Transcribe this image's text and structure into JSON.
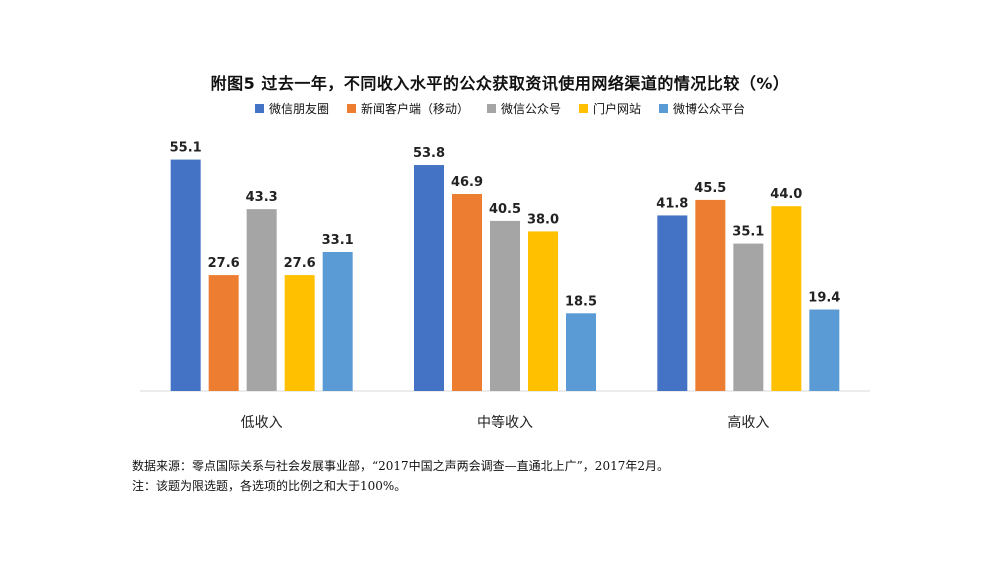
{
  "title": "附图5 过去一年，不同收入水平的公众获取资讯使用网络渠道的情况比较（%）",
  "colors": {
    "series": [
      "#4472C4",
      "#ED7D31",
      "#A5A5A5",
      "#FFC000",
      "#5B9BD5"
    ],
    "axis": "#D9D9D9"
  },
  "chart_data": {
    "type": "bar",
    "title": "附图5 过去一年，不同收入水平的公众获取资讯使用网络渠道的情况比较（%）",
    "xlabel": "",
    "ylabel": "",
    "ylim": [
      0,
      60
    ],
    "grid": false,
    "legend": "top-center",
    "categories": [
      "低收入",
      "中等收入",
      "高收入"
    ],
    "series": [
      {
        "name": "微信朋友圈",
        "values": [
          55.1,
          53.8,
          41.8
        ]
      },
      {
        "name": "新闻客户端（移动）",
        "values": [
          27.6,
          46.9,
          45.5
        ]
      },
      {
        "name": "微信公众号",
        "values": [
          43.3,
          40.5,
          35.1
        ]
      },
      {
        "name": "门户网站",
        "values": [
          27.6,
          38.0,
          44.0
        ]
      },
      {
        "name": "微博公众平台",
        "values": [
          33.1,
          18.5,
          19.4
        ]
      }
    ]
  },
  "source": {
    "line1": "数据来源：零点国际关系与社会发展事业部，“2017中国之声两会调查—直通北上广”，2017年2月。",
    "line2": "注：该题为限选题，各选项的比例之和大于100%。"
  }
}
